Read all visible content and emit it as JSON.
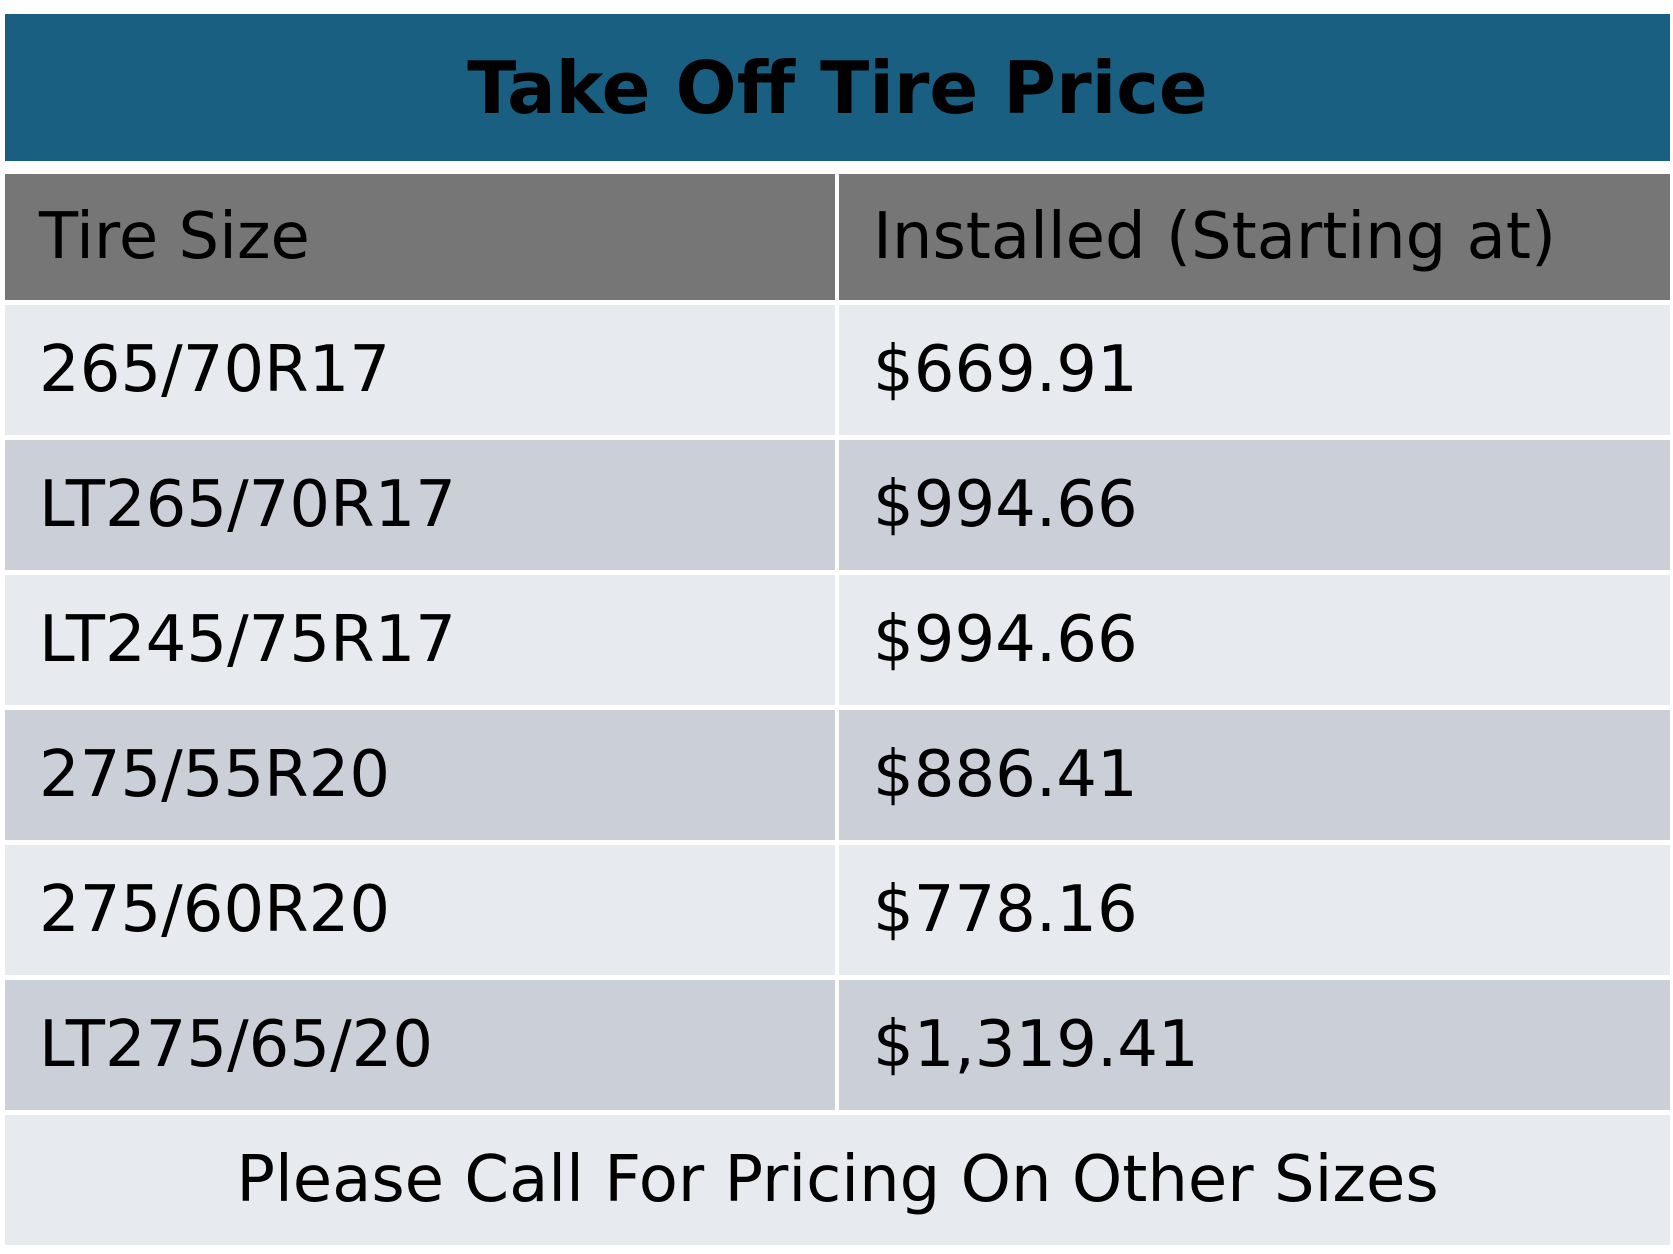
{
  "header": {
    "title": "Take Off Tire Price"
  },
  "table": {
    "columns": [
      "Tire Size",
      "Installed (Starting at)"
    ],
    "rows": [
      [
        "265/70R17",
        "$669.91"
      ],
      [
        "LT265/70R17",
        "$994.66"
      ],
      [
        "LT245/75R17",
        "$994.66"
      ],
      [
        "275/55R20",
        "$886.41"
      ],
      [
        "275/60R20",
        "$778.16"
      ],
      [
        "LT275/65/20",
        "$1,319.41"
      ]
    ],
    "footer": "Please Call For Pricing On Other Sizes"
  }
}
